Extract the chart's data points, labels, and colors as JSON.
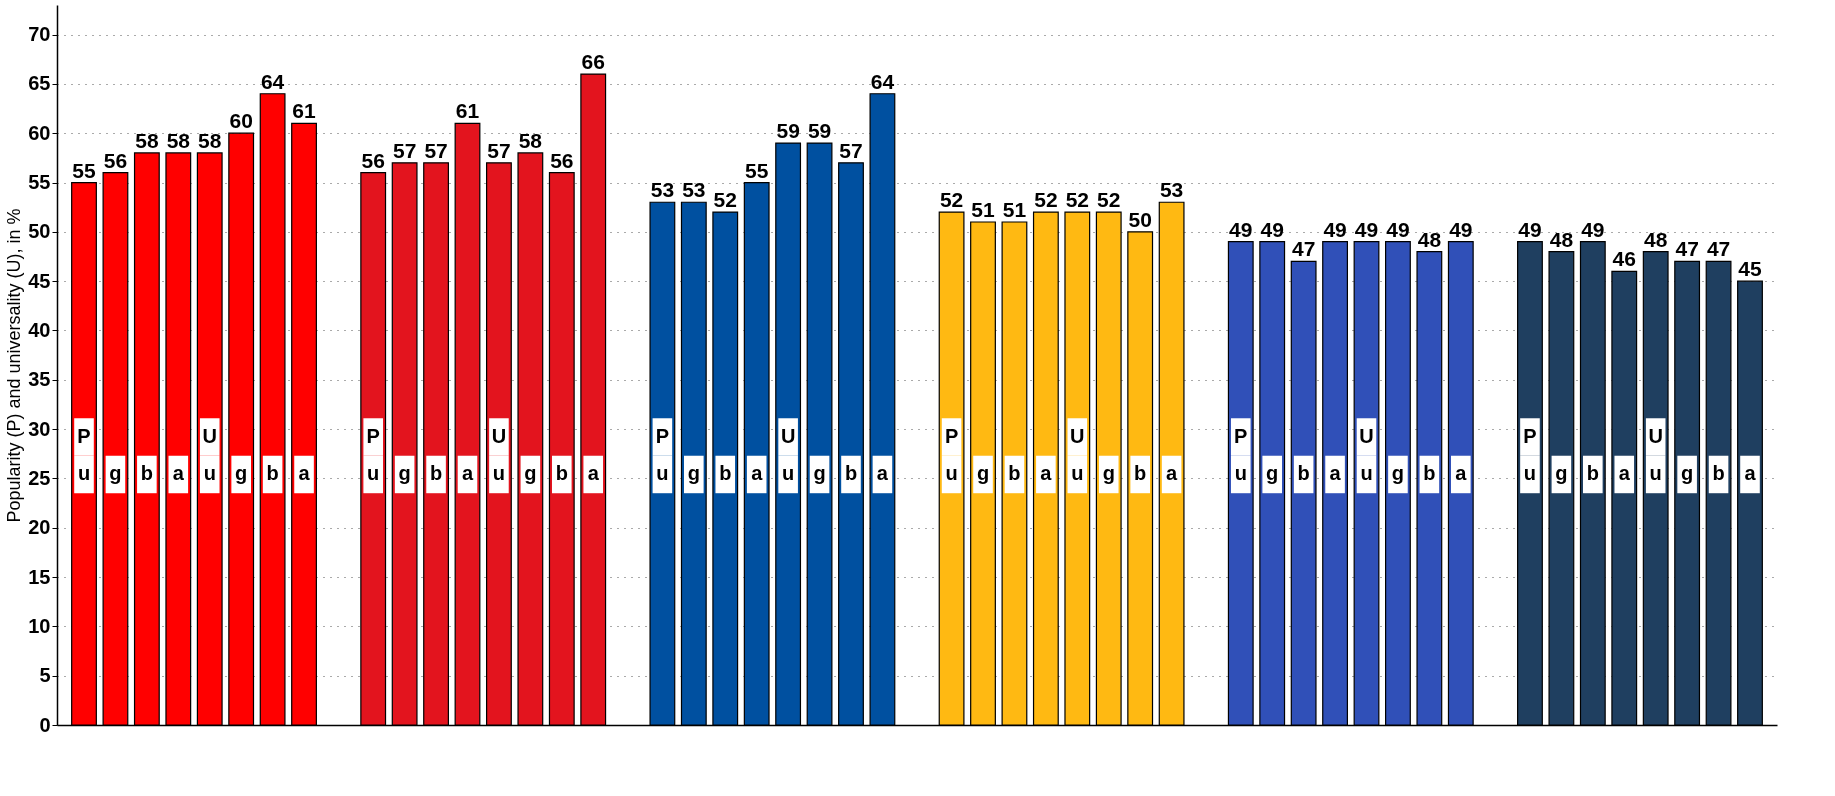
{
  "chart_data": {
    "type": "bar",
    "ylabel": "Popularity (P) and universality (U), in %",
    "categories": [
      "P\nu",
      "g",
      "b",
      "a",
      "U\nu",
      "g",
      "b",
      "a",
      "P\nu",
      "g",
      "b",
      "a",
      "U\nu",
      "g",
      "b",
      "a",
      "P\nu",
      "g",
      "b",
      "a",
      "U\nu",
      "g",
      "b",
      "a",
      "P\nu",
      "g",
      "b",
      "a",
      "U\nu",
      "g",
      "b",
      "a",
      "P\nu",
      "g",
      "b",
      "a",
      "U\nu",
      "g",
      "b",
      "a",
      "P\nu",
      "g",
      "b",
      "a",
      "U\nu",
      "g",
      "b",
      "a"
    ],
    "values": [
      55,
      56,
      58,
      58,
      58,
      60,
      64,
      61,
      56,
      57,
      57,
      61,
      57,
      58,
      56,
      66,
      53,
      53,
      52,
      55,
      59,
      59,
      57,
      64,
      52,
      51,
      51,
      52,
      52,
      52,
      50,
      53,
      49,
      49,
      47,
      49,
      49,
      49,
      48,
      49,
      49,
      48,
      49,
      46,
      48,
      47,
      47,
      45
    ],
    "colors": [
      "#ff0000",
      "#ff0000",
      "#ff0000",
      "#ff0000",
      "#ff0000",
      "#ff0000",
      "#ff0000",
      "#ff0000",
      "#e3141e",
      "#e3141e",
      "#e3141e",
      "#e3141e",
      "#e3141e",
      "#e3141e",
      "#e3141e",
      "#e3141e",
      "#0050a0",
      "#0050a0",
      "#0050a0",
      "#0050a0",
      "#0050a0",
      "#0050a0",
      "#0050a0",
      "#0050a0",
      "#ffb912",
      "#ffb912",
      "#ffb912",
      "#ffb912",
      "#ffb912",
      "#ffb912",
      "#ffb912",
      "#ffb912",
      "#3050b8",
      "#3050b8",
      "#3050b8",
      "#3050b8",
      "#3050b8",
      "#3050b8",
      "#3050b8",
      "#3050b8",
      "#1f3f60",
      "#1f3f60",
      "#1f3f60",
      "#1f3f60",
      "#1f3f60",
      "#1f3f60",
      "#1f3f60",
      "#1f3f60"
    ],
    "ylim": [
      0,
      73
    ],
    "yticks": [
      0,
      5,
      10,
      15,
      20,
      25,
      30,
      35,
      40,
      45,
      50,
      55,
      60,
      65,
      70
    ],
    "grid": "y",
    "data_labels": true
  }
}
